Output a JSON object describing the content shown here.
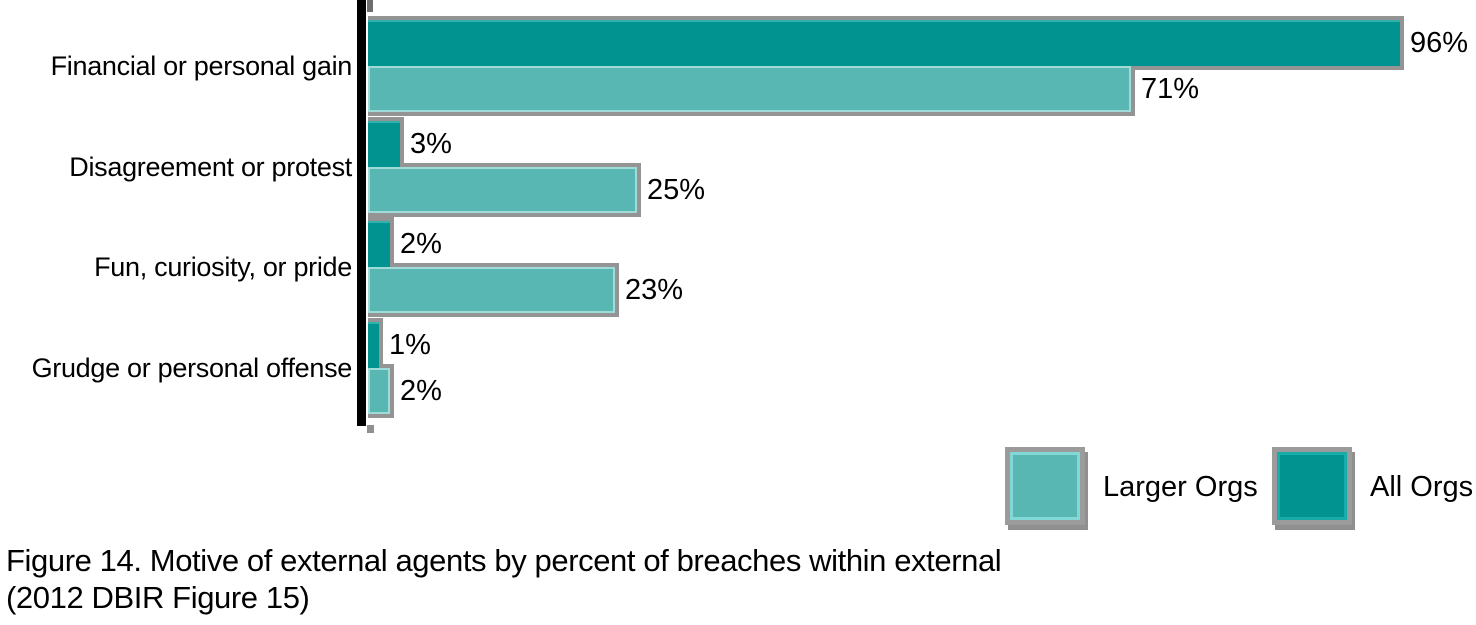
{
  "chart_data": {
    "type": "bar",
    "orientation": "horizontal",
    "title": "",
    "xlabel": "",
    "ylabel": "",
    "xlim": [
      0,
      100
    ],
    "grid": false,
    "legend_position": "bottom-right",
    "categories": [
      "Financial or personal gain",
      "Disagreement or protest",
      "Fun, curiosity, or pride",
      "Grudge or personal offense"
    ],
    "series": [
      {
        "name": "All Orgs",
        "color": "#009390",
        "values": [
          96,
          3,
          2,
          1
        ],
        "value_labels": [
          "96%",
          "3%",
          "2%",
          "1%"
        ]
      },
      {
        "name": "Larger Orgs",
        "color": "#58B7B3",
        "values": [
          71,
          25,
          23,
          2
        ],
        "value_labels": [
          "71%",
          "25%",
          "23%",
          "2%"
        ]
      }
    ],
    "value_suffix": "%"
  },
  "legend": {
    "items": [
      {
        "label": "Larger Orgs",
        "swatch_color": "#58B7B3"
      },
      {
        "label": "All Orgs",
        "swatch_color": "#009390"
      }
    ]
  },
  "caption": {
    "line1": "Figure 14. Motive of external agents by percent of breaches within external",
    "line2": "(2012 DBIR Figure 15)"
  },
  "colors": {
    "all_orgs": "#009390",
    "larger_orgs": "#58B7B3",
    "axis": "#000000",
    "shadow": "#949494",
    "text": "#000000",
    "background": "#FFFFFF"
  }
}
